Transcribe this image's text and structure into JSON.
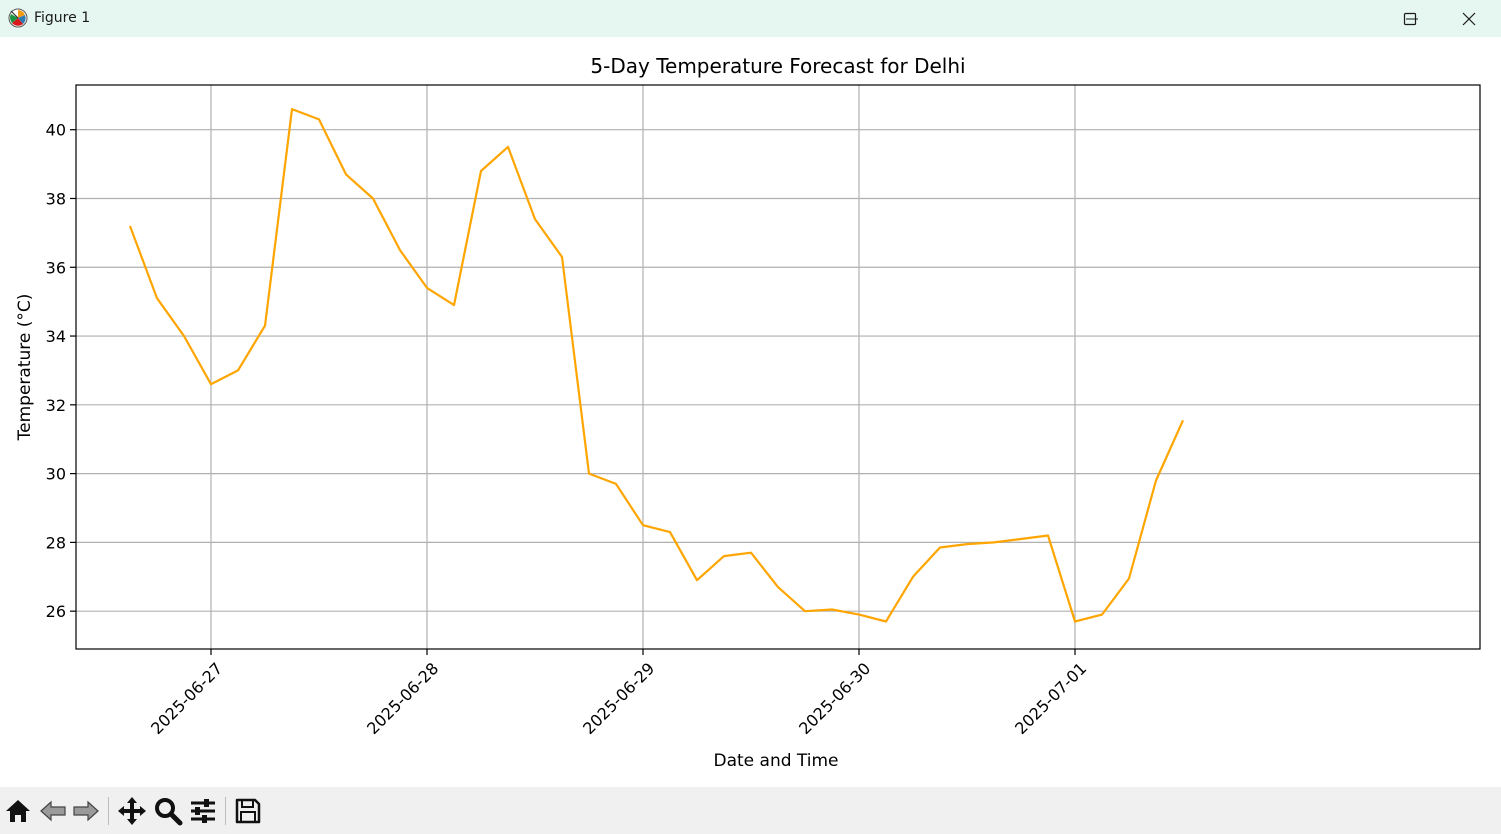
{
  "window": {
    "title": "Figure 1",
    "icon": "matplotlib-logo-icon"
  },
  "toolbar": {
    "tools": [
      "home-icon",
      "back-arrow-icon",
      "forward-arrow-icon",
      "pan-move-icon",
      "zoom-magnifier-icon",
      "configure-subplots-icon",
      "save-floppy-icon"
    ]
  },
  "chart_data": {
    "type": "line",
    "title": "5-Day Temperature Forecast for Delhi",
    "xlabel": "Date and Time",
    "ylabel": "Temperature (°C)",
    "grid": true,
    "line_color": "#ffa500",
    "x_ticks": [
      "2025-06-27",
      "2025-06-28",
      "2025-06-29",
      "2025-06-30",
      "2025-07-01"
    ],
    "y_ticks": [
      26,
      28,
      30,
      32,
      34,
      36,
      38,
      40
    ],
    "xlim": [
      "2025-06-26 09:00",
      "2025-07-02 21:00"
    ],
    "ylim": [
      24.9,
      41.3
    ],
    "series": [
      {
        "x": [
          "2025-06-26 15:00",
          "2025-06-26 18:00",
          "2025-06-26 21:00",
          "2025-06-27 00:00",
          "2025-06-27 03:00",
          "2025-06-27 06:00",
          "2025-06-27 09:00",
          "2025-06-27 12:00",
          "2025-06-27 15:00",
          "2025-06-27 18:00",
          "2025-06-27 21:00",
          "2025-06-28 00:00",
          "2025-06-28 03:00",
          "2025-06-28 06:00",
          "2025-06-28 09:00",
          "2025-06-28 12:00",
          "2025-06-28 15:00",
          "2025-06-28 18:00",
          "2025-06-28 21:00",
          "2025-06-29 00:00",
          "2025-06-29 03:00",
          "2025-06-29 06:00",
          "2025-06-29 09:00",
          "2025-06-29 12:00",
          "2025-06-29 15:00",
          "2025-06-29 18:00",
          "2025-06-29 21:00",
          "2025-06-30 00:00",
          "2025-06-30 03:00",
          "2025-06-30 06:00",
          "2025-06-30 09:00",
          "2025-06-30 12:00",
          "2025-06-30 15:00",
          "2025-06-30 18:00",
          "2025-06-30 21:00",
          "2025-07-01 00:00",
          "2025-07-01 03:00",
          "2025-07-01 06:00",
          "2025-07-01 09:00",
          "2025-07-01 12:00"
        ],
        "values": [
          37.2,
          35.1,
          34.0,
          32.6,
          33.0,
          34.3,
          40.6,
          40.3,
          38.7,
          38.0,
          36.5,
          35.4,
          34.9,
          38.8,
          39.5,
          37.4,
          36.3,
          30.0,
          29.7,
          28.5,
          28.3,
          26.9,
          27.6,
          27.7,
          26.7,
          26.0,
          26.05,
          25.9,
          25.7,
          27.0,
          27.85,
          27.95,
          28.0,
          28.1,
          28.2,
          25.7,
          25.9,
          26.95,
          29.8,
          31.55
        ]
      }
    ]
  }
}
